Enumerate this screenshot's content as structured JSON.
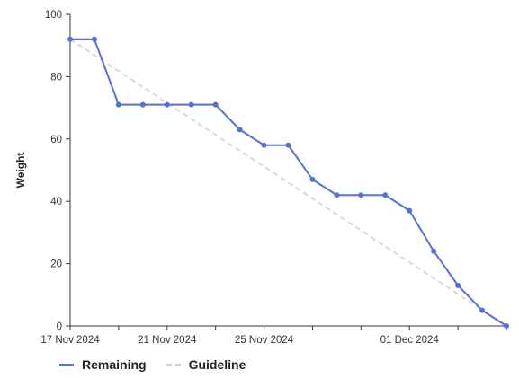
{
  "chart_data": {
    "type": "line",
    "ylabel": "Weight",
    "xlabel": "",
    "ylim": [
      0,
      100
    ],
    "yticks": [
      0,
      20,
      40,
      60,
      80,
      100
    ],
    "x": [
      "2024-11-17",
      "2024-11-18",
      "2024-11-19",
      "2024-11-20",
      "2024-11-21",
      "2024-11-22",
      "2024-11-23",
      "2024-11-24",
      "2024-11-25",
      "2024-11-26",
      "2024-11-27",
      "2024-11-28",
      "2024-11-29",
      "2024-11-30",
      "2024-12-01",
      "2024-12-02",
      "2024-12-03",
      "2024-12-04",
      "2024-12-05"
    ],
    "xlim": [
      "2024-11-17",
      "2024-12-05"
    ],
    "xtick_labels": [
      {
        "date": "2024-11-17",
        "label": "17 Nov 2024"
      },
      {
        "date": "2024-11-21",
        "label": "21 Nov 2024"
      },
      {
        "date": "2024-11-25",
        "label": "25 Nov 2024"
      },
      {
        "date": "2024-12-01",
        "label": "01 Dec 2024"
      }
    ],
    "series": [
      {
        "name": "Remaining",
        "color": "#5470d9",
        "style": "solid",
        "markers": true,
        "values": [
          92,
          92,
          71,
          71,
          71,
          71,
          71,
          63,
          58,
          58,
          47,
          42,
          42,
          42,
          37,
          24,
          13,
          5,
          0
        ]
      },
      {
        "name": "Guideline",
        "color": "#d9d9d9",
        "style": "dashed",
        "markers": false,
        "points": [
          {
            "x": "2024-11-17",
            "y": 92
          },
          {
            "x": "2024-12-05",
            "y": 0
          }
        ]
      }
    ],
    "legend_position": "bottom-left",
    "grid": false
  }
}
